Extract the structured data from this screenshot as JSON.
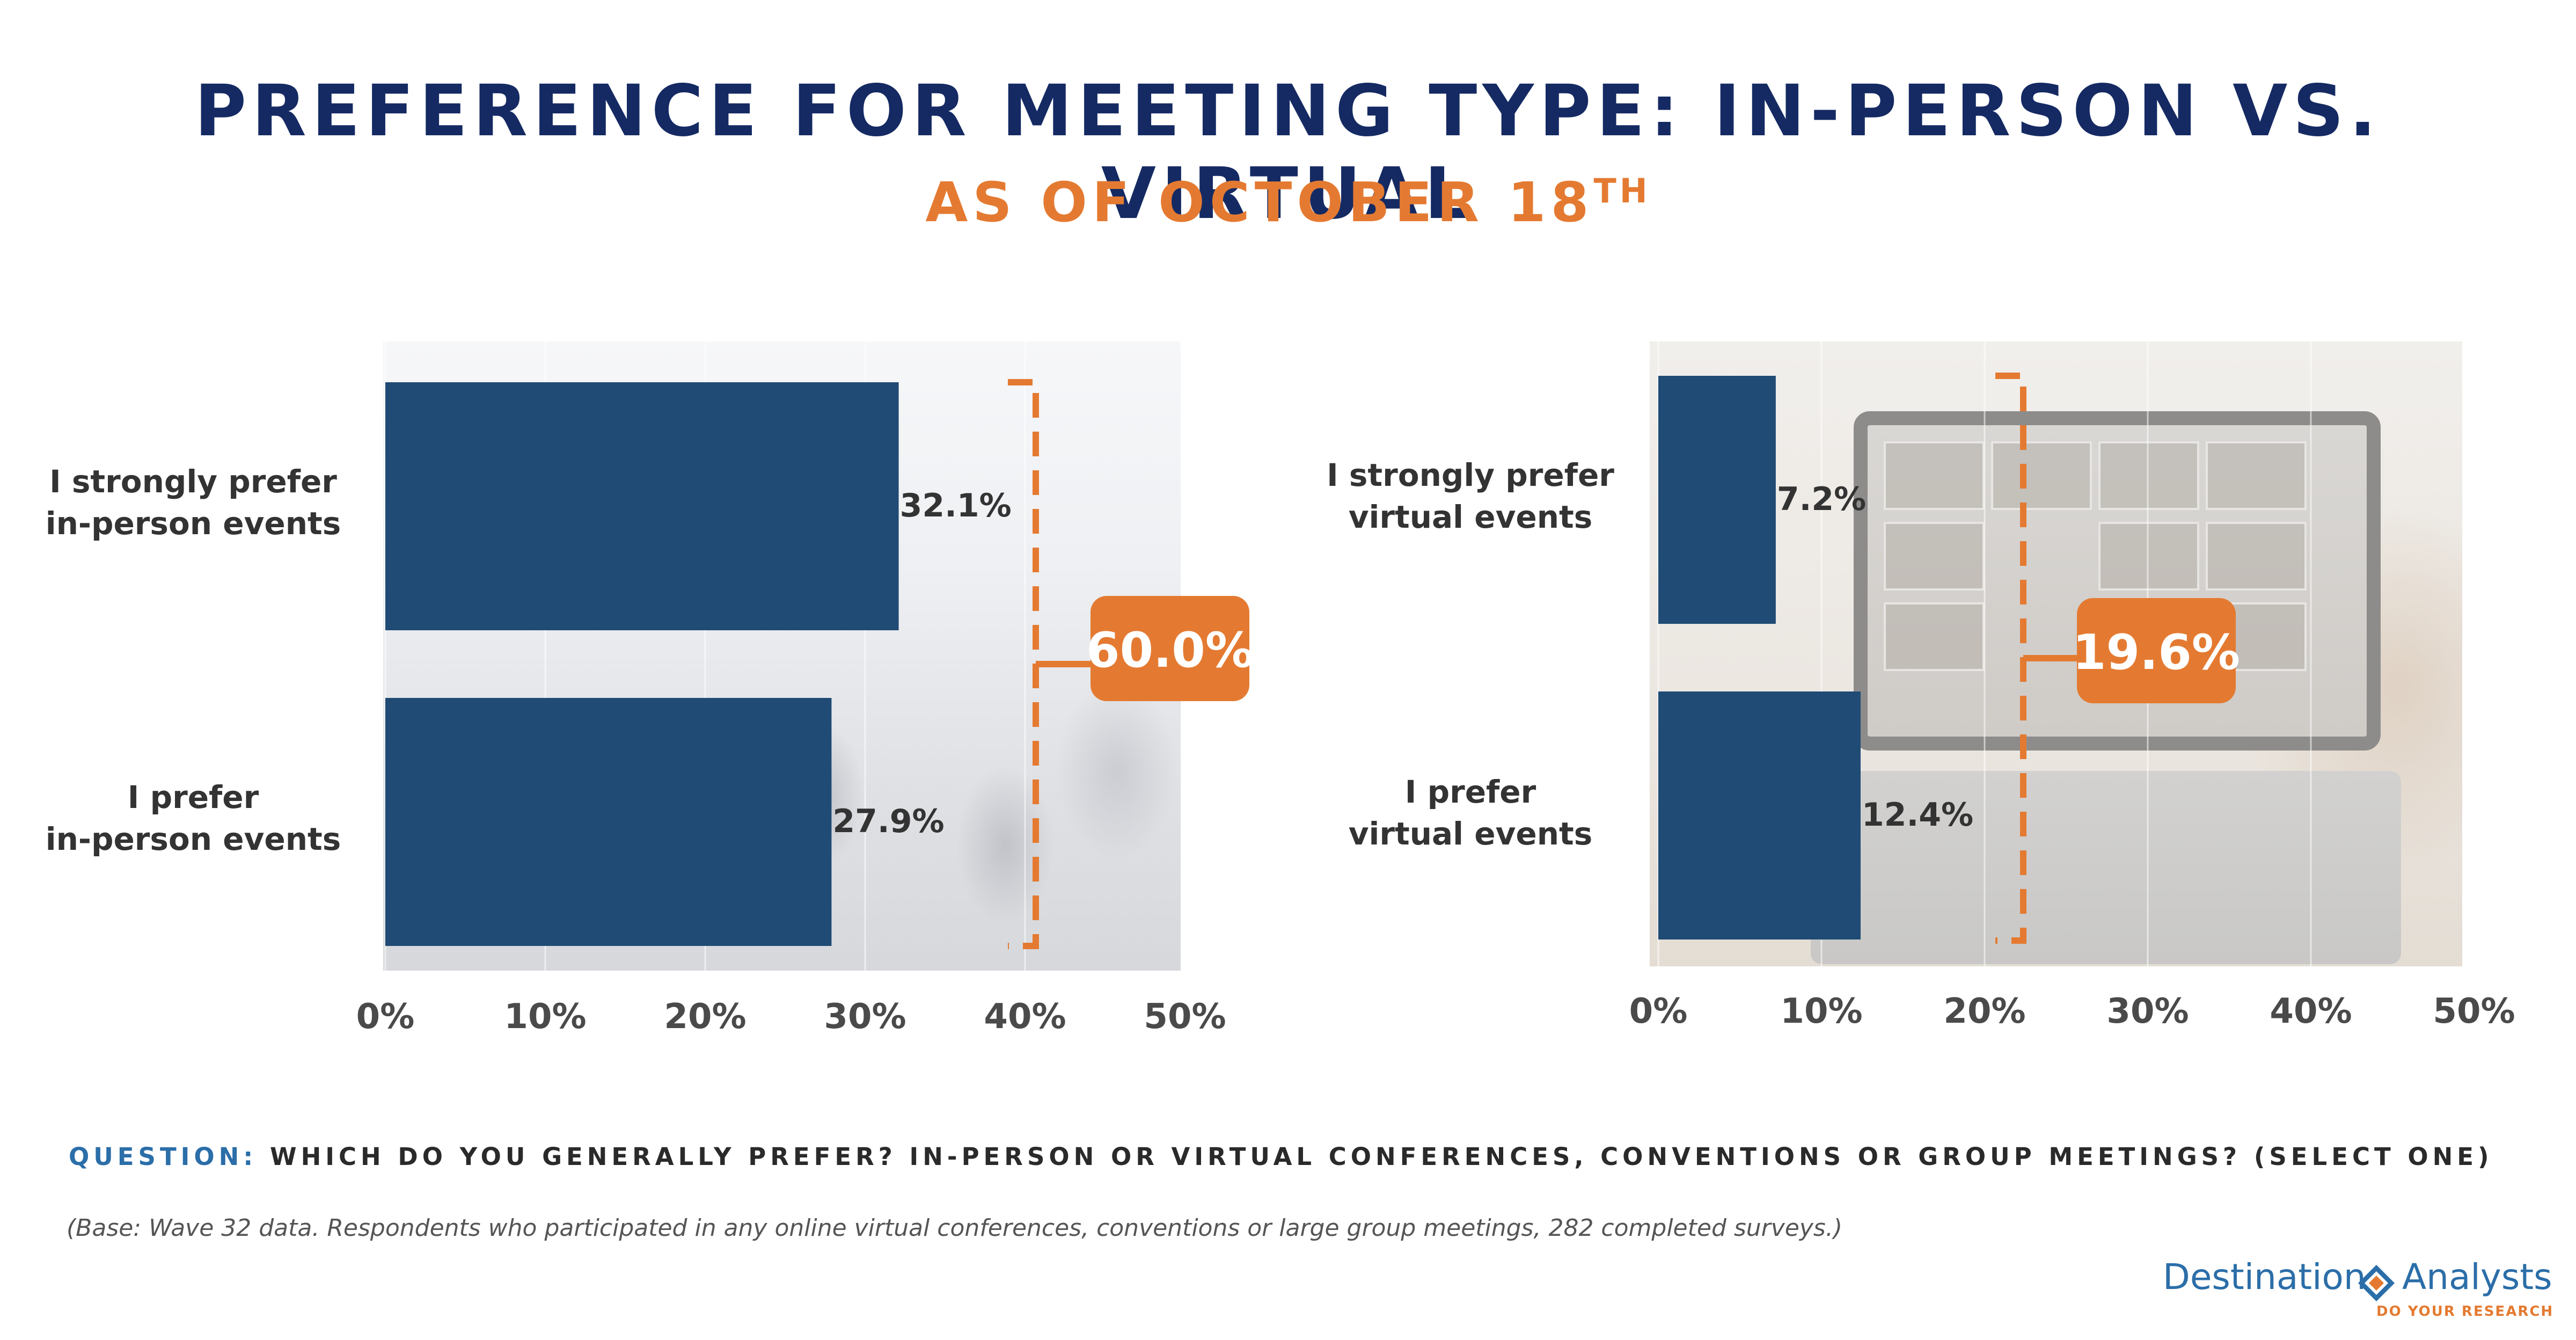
{
  "title": "PREFERENCE FOR MEETING TYPE: IN-PERSON VS. VIRTUAL",
  "subtitle": {
    "text": "AS OF OCTOBER 18",
    "suffix": "TH"
  },
  "chart_data": [
    {
      "type": "bar",
      "orientation": "horizontal",
      "categories": [
        "I strongly prefer in-person events",
        "I prefer in-person events"
      ],
      "category_lines": [
        [
          "I strongly prefer",
          "in-person events"
        ],
        [
          "I prefer",
          "in-person events"
        ]
      ],
      "values": [
        32.1,
        27.9
      ],
      "value_labels": [
        "32.1%",
        "27.9%"
      ],
      "xlim": [
        0,
        50
      ],
      "xticks": [
        0,
        10,
        20,
        30,
        40,
        50
      ],
      "xtick_labels": [
        "0%",
        "10%",
        "20%",
        "30%",
        "40%",
        "50%"
      ],
      "total_label": "60.0%",
      "bar_color": "#1f4b75"
    },
    {
      "type": "bar",
      "orientation": "horizontal",
      "categories": [
        "I strongly prefer virtual events",
        "I prefer virtual events"
      ],
      "category_lines": [
        [
          "I strongly prefer",
          "virtual events"
        ],
        [
          "I prefer",
          "virtual events"
        ]
      ],
      "values": [
        7.2,
        12.4
      ],
      "value_labels": [
        "7.2%",
        "12.4%"
      ],
      "xlim": [
        0,
        50
      ],
      "xticks": [
        0,
        10,
        20,
        30,
        40,
        50
      ],
      "xtick_labels": [
        "0%",
        "10%",
        "20%",
        "30%",
        "40%",
        "50%"
      ],
      "total_label": "19.6%",
      "bar_color": "#1f4b75"
    }
  ],
  "colors": {
    "navy": "#152a63",
    "orange": "#e47a31",
    "bar": "#1f4b75",
    "blue": "#2b6ea8"
  },
  "question": {
    "label": "QUESTION:",
    "text": "WHICH DO YOU GENERALLY PREFER? IN-PERSON OR VIRTUAL CONFERENCES, CONVENTIONS OR GROUP MEETINGS?  (SELECT ONE)"
  },
  "base_note": "(Base: Wave 32 data. Respondents who participated in any online virtual conferences, conventions or large group meetings, 282 completed surveys.)",
  "logo": {
    "left": "Destination",
    "right": "Analysts",
    "tagline": "DO YOUR RESEARCH",
    "icon": "diamond-arrows-icon"
  }
}
